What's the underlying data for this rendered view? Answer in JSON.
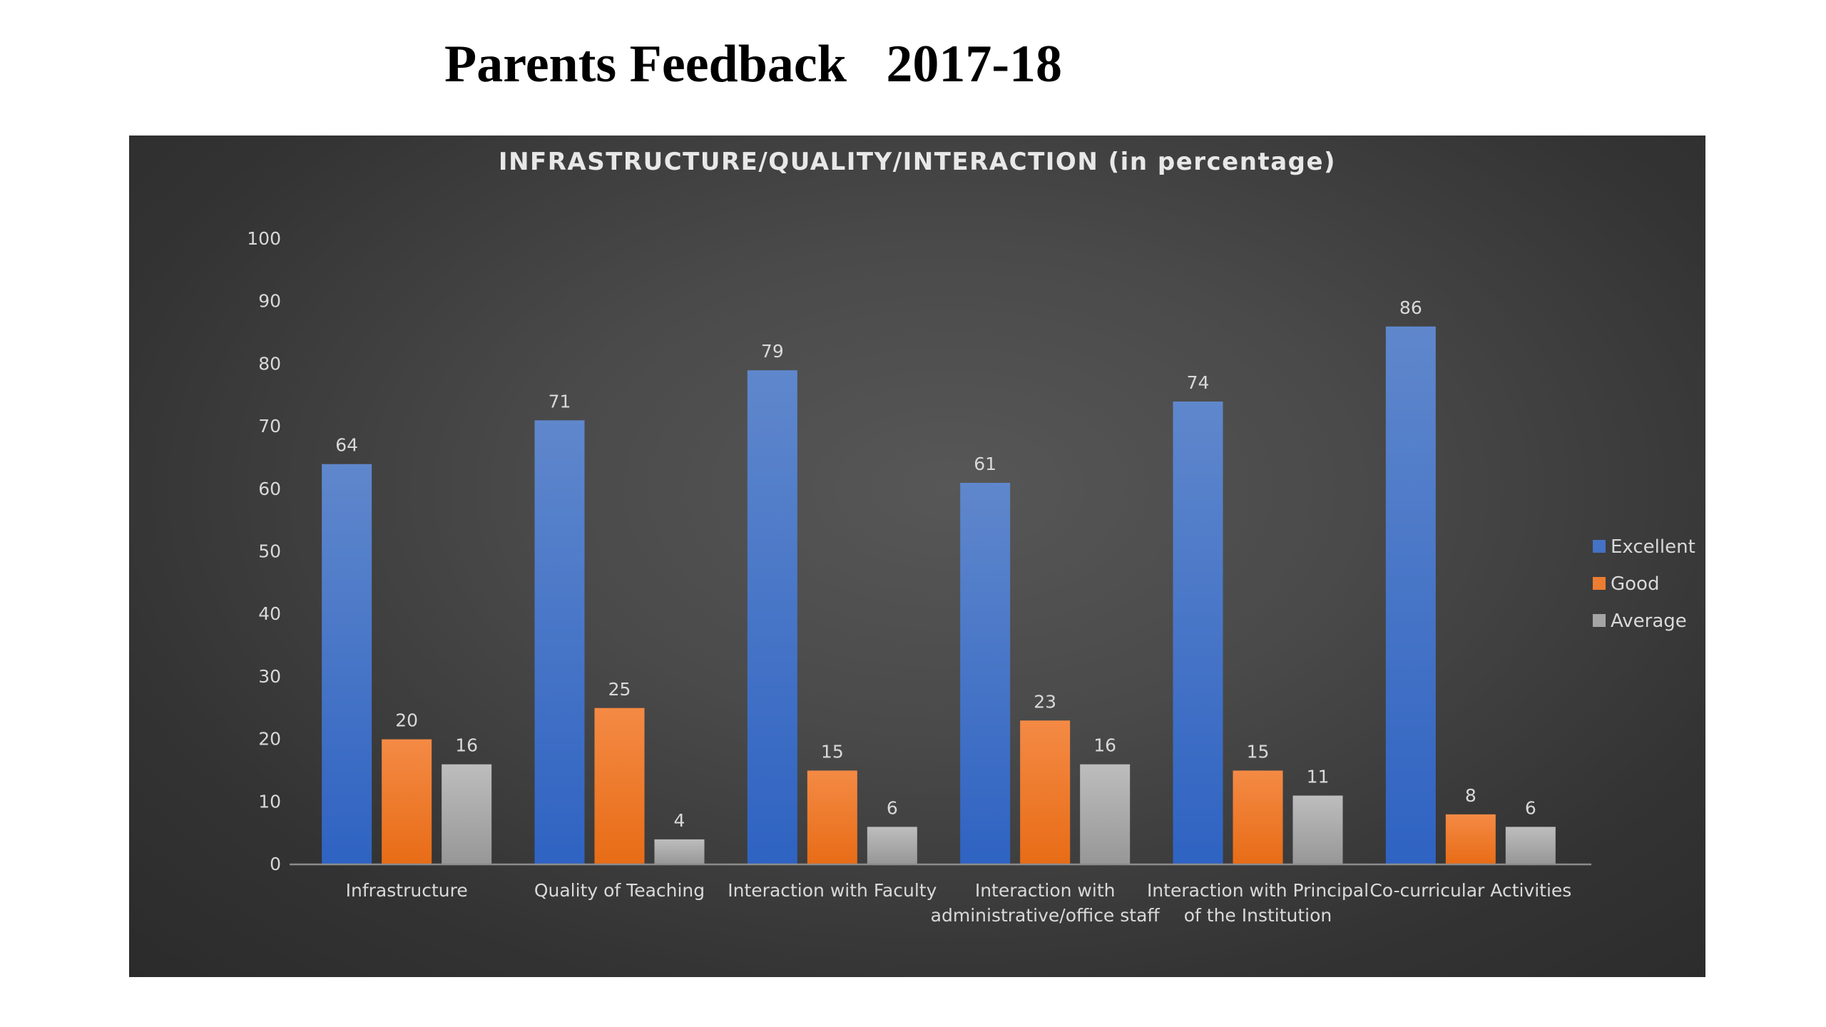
{
  "page": {
    "title": "Parents Feedback   2017-18"
  },
  "colors": {
    "panel_background": "#3f3f3f",
    "text": "#d9d9d9",
    "axis_line": "#8c8c8c"
  },
  "chart_data": {
    "type": "bar",
    "title": "INFRASTRUCTURE/QUALITY/INTERACTION (in percentage)",
    "categories": [
      "Infrastructure",
      "Quality of Teaching",
      "Interaction with Faculty",
      "Interaction with administrative/office staff",
      "Interaction with Principal of the Institution",
      "Co-curricular Activities"
    ],
    "category_lines": [
      [
        "Infrastructure"
      ],
      [
        "Quality of Teaching"
      ],
      [
        "Interaction with Faculty"
      ],
      [
        "Interaction with",
        "administrative/office staff"
      ],
      [
        "Interaction with Principal",
        "of the Institution"
      ],
      [
        "Co-curricular Activities"
      ]
    ],
    "series": [
      {
        "name": "Excellent",
        "color": "#4472c4",
        "values": [
          64,
          71,
          79,
          61,
          74,
          86
        ]
      },
      {
        "name": "Good",
        "color": "#ed7d31",
        "values": [
          20,
          25,
          15,
          23,
          15,
          8
        ]
      },
      {
        "name": "Average",
        "color": "#a5a5a5",
        "values": [
          16,
          4,
          6,
          16,
          11,
          6
        ]
      }
    ],
    "ylim": [
      0,
      100
    ],
    "yticks": [
      0,
      10,
      20,
      30,
      40,
      50,
      60,
      70,
      80,
      90,
      100
    ],
    "xlabel": "",
    "ylabel": "",
    "grid": false,
    "data_labels": true,
    "legend_position": "right"
  }
}
